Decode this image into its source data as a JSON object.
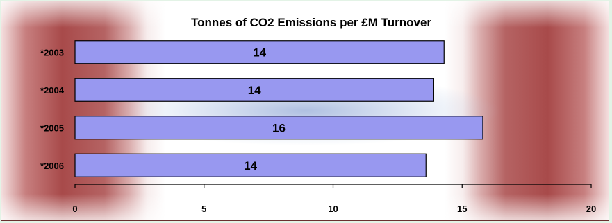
{
  "chart_data": {
    "type": "bar",
    "orientation": "horizontal",
    "title": "Tonnes of CO2 Emissions per £M Turnover",
    "categories": [
      "*2003",
      "*2004",
      "*2005",
      "*2006"
    ],
    "values": [
      14.3,
      13.9,
      15.8,
      13.6
    ],
    "data_labels": [
      "14",
      "14",
      "16",
      "14"
    ],
    "xlim": [
      0,
      20
    ],
    "xticks": [
      "0",
      "5",
      "10",
      "15",
      "20"
    ],
    "xlabel": "",
    "ylabel": "",
    "grid": false,
    "legend": "none",
    "colors": {
      "bar_fill": "#9898f0",
      "bar_stroke": "#000000",
      "axis": "#000000"
    }
  }
}
